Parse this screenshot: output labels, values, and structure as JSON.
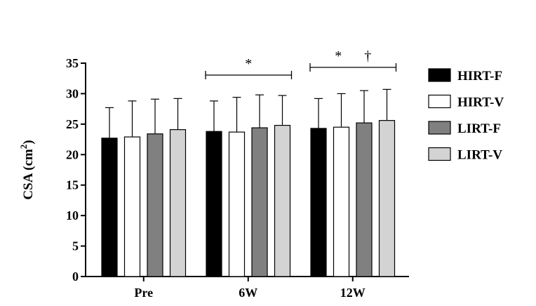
{
  "chart_data": {
    "type": "bar",
    "ylabel_main": "CSA (cm",
    "ylabel_sup": "2",
    "ylabel_close": ")",
    "xlabel": "",
    "ylim": [
      0,
      35
    ],
    "yticks": [
      0,
      5,
      10,
      15,
      20,
      25,
      30,
      35
    ],
    "categories": [
      "Pre",
      "6W",
      "12W"
    ],
    "series": [
      {
        "name": "HIRT-F",
        "color": "#000000",
        "values": [
          22.7,
          23.8,
          24.3
        ],
        "errors": [
          5.0,
          5.0,
          4.9
        ]
      },
      {
        "name": "HIRT-V",
        "color": "#ffffff",
        "values": [
          22.9,
          23.7,
          24.5
        ],
        "errors": [
          5.9,
          5.7,
          5.5
        ]
      },
      {
        "name": "LIRT-F",
        "color": "#808080",
        "values": [
          23.4,
          24.4,
          25.2
        ],
        "errors": [
          5.7,
          5.4,
          5.3
        ]
      },
      {
        "name": "LIRT-V",
        "color": "#d3d3d3",
        "values": [
          24.1,
          24.8,
          25.6
        ],
        "errors": [
          5.1,
          4.9,
          5.1
        ]
      }
    ],
    "legend_position": "right",
    "grid": false,
    "annotations": [
      {
        "category": "6W",
        "symbols": [
          "*"
        ]
      },
      {
        "category": "12W",
        "symbols": [
          "*",
          "†"
        ]
      }
    ]
  }
}
